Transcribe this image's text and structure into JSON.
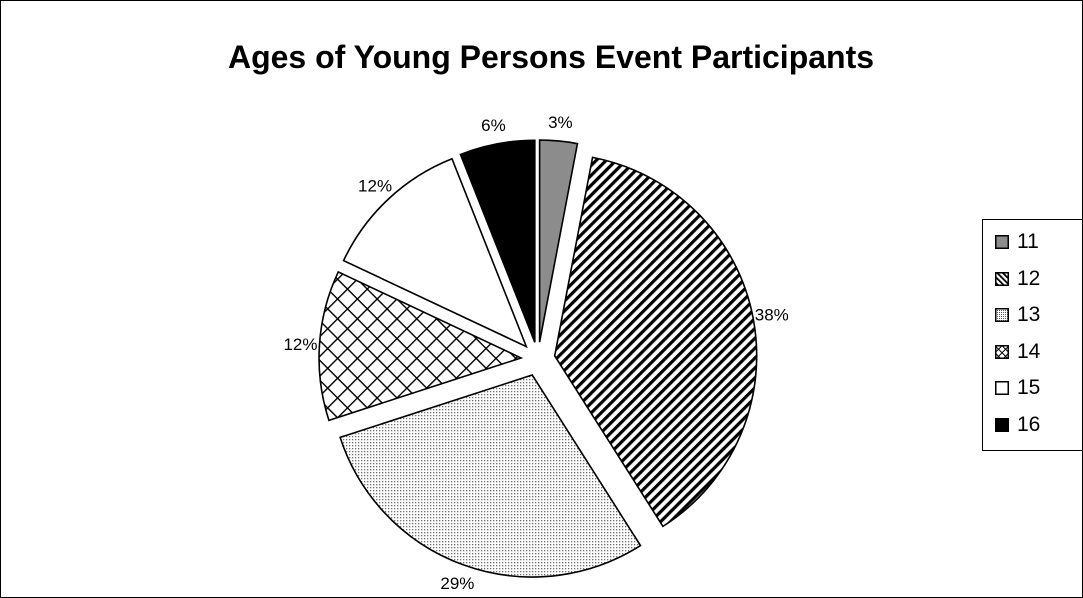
{
  "chart_data": {
    "type": "pie",
    "title": "Ages of Young Persons Event Participants",
    "categories": [
      "11",
      "12",
      "13",
      "14",
      "15",
      "16"
    ],
    "values": [
      3,
      38,
      29,
      12,
      12,
      6
    ],
    "labels": [
      "3%",
      "38%",
      "29%",
      "12%",
      "12%",
      "6%"
    ],
    "fills": [
      "gray-solid",
      "diagonal-stripes",
      "fine-dots",
      "crosshatch",
      "white",
      "black-solid"
    ],
    "exploded": true,
    "legend_position": "right",
    "start_angle": "12 o'clock",
    "direction": "clockwise"
  },
  "colors": {
    "gray": "#8c8c8c",
    "black": "#000000",
    "white": "#ffffff",
    "dots": "#b4b4b4"
  }
}
